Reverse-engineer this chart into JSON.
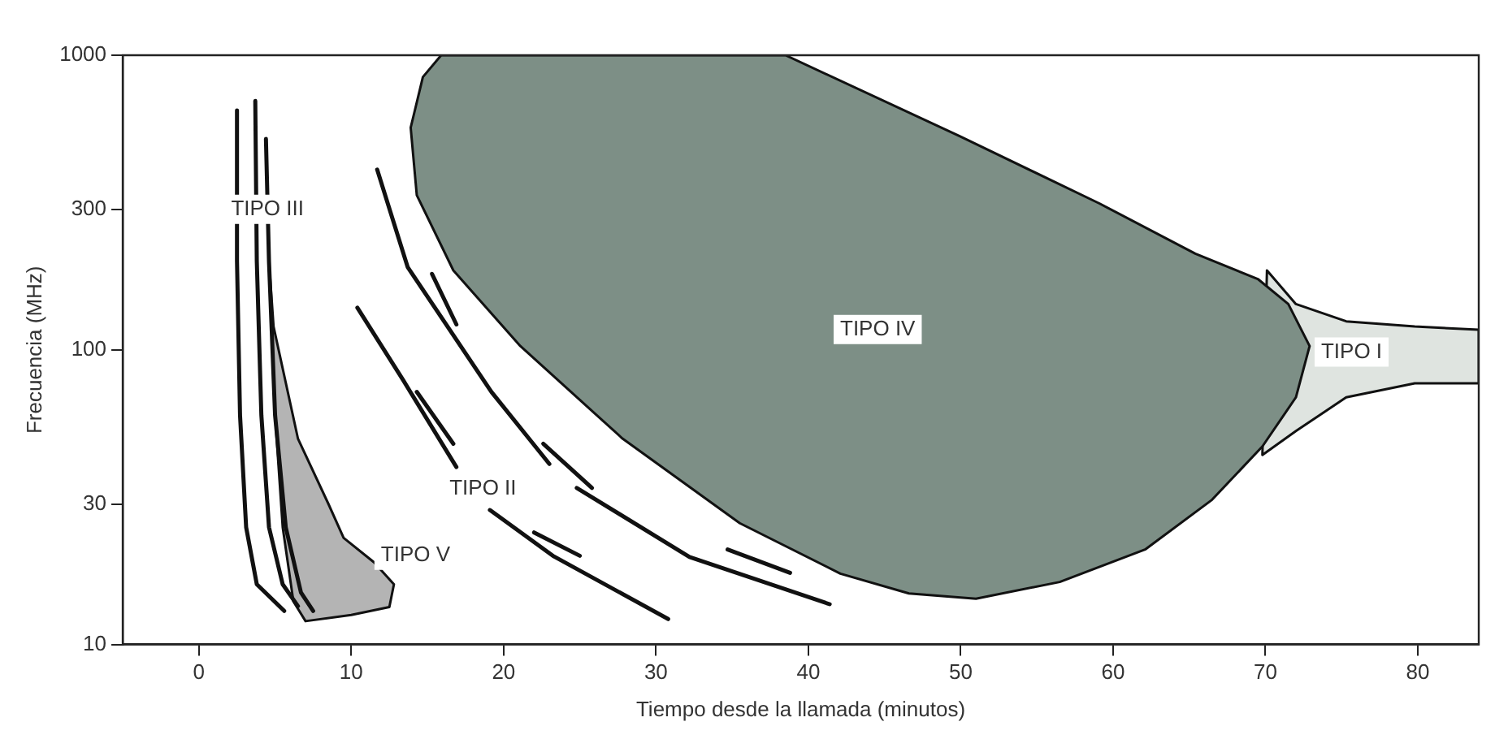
{
  "chart_data": {
    "type": "line",
    "xlabel": "Tiempo desde la llamada (minutos)",
    "ylabel": "Frecuencia (MHz)",
    "xlim": [
      -5,
      84
    ],
    "xticks": [
      0,
      10,
      20,
      30,
      40,
      50,
      60,
      70,
      80
    ],
    "ylim": [
      10,
      1000
    ],
    "yticks": [
      10,
      30,
      100,
      300,
      1000
    ],
    "log": "y",
    "grid": false,
    "legend": false,
    "marker": "none",
    "line_style": "solid",
    "series": [
      {
        "type": "area",
        "color": "#7d8f86",
        "x": [
          15.9,
          38.5,
          49.9,
          59.1,
          65.4,
          69.5,
          71.5,
          72.9,
          72.0,
          69.8,
          66.5,
          62.1,
          56.5,
          51.0,
          46.6,
          42.1,
          35.5,
          27.8,
          21.1,
          16.7,
          14.3,
          13.9,
          14.7,
          15.9
        ],
        "values": [
          1000,
          1000,
          532,
          314,
          212,
          174,
          143,
          103,
          69,
          47,
          31,
          21,
          16.3,
          14.3,
          14.9,
          17.4,
          25.8,
          50,
          103,
          186,
          335,
          568,
          843,
          1000
        ]
      },
      {
        "type": "area",
        "color": "#dfe4e0",
        "x": [
          70.1,
          72,
          75.3,
          79.8,
          84,
          84,
          79.8,
          75.3,
          72,
          69.8,
          70.1
        ],
        "values": [
          186,
          143,
          125,
          120,
          117,
          77,
          77,
          69,
          53,
          44,
          186
        ]
      },
      {
        "type": "area",
        "color": "#b4b4b4",
        "x": [
          4.6,
          4.9,
          6.5,
          8.5,
          9.5,
          11.5,
          12.8,
          12.5,
          10,
          7,
          6.2,
          5.5,
          5.0,
          4.6
        ],
        "values": [
          200,
          120,
          50,
          30,
          23,
          19,
          16,
          13.4,
          12.6,
          12,
          14,
          25,
          60,
          200
        ]
      },
      {
        "color": "#111111",
        "x": [
          2.5,
          2.5,
          2.7,
          3.1,
          3.8,
          5.6
        ],
        "values": [
          650,
          200,
          60,
          25,
          16,
          13
        ]
      },
      {
        "color": "#111111",
        "x": [
          3.7,
          3.8,
          4.1,
          4.6,
          5.5,
          6.5
        ],
        "values": [
          700,
          200,
          60,
          25,
          16,
          13.5
        ]
      },
      {
        "color": "#111111",
        "x": [
          4.4,
          4.6,
          5.0,
          5.7,
          6.7,
          7.5
        ],
        "values": [
          520,
          200,
          60,
          25,
          15,
          13
        ]
      },
      {
        "color": "#111111",
        "x": [
          10.4,
          13.4,
          16.9
        ],
        "values": [
          139,
          79,
          40
        ]
      },
      {
        "color": "#111111",
        "x": [
          19.1,
          23.3,
          30.8
        ],
        "values": [
          28.6,
          19.9,
          12.2
        ]
      },
      {
        "color": "#111111",
        "x": [
          11.7,
          13.7,
          19.2,
          23.0
        ],
        "values": [
          409,
          191,
          72,
          41
        ]
      },
      {
        "color": "#111111",
        "x": [
          24.8,
          32.2,
          41.4
        ],
        "values": [
          34,
          19.8,
          13.7
        ]
      },
      {
        "color": "#111111",
        "x": [
          15.3,
          16.9
        ],
        "values": [
          181,
          122
        ]
      },
      {
        "color": "#111111",
        "x": [
          14.3,
          16.7
        ],
        "values": [
          72,
          48
        ]
      },
      {
        "color": "#111111",
        "x": [
          22.6,
          25.8
        ],
        "values": [
          48,
          34
        ]
      },
      {
        "color": "#111111",
        "x": [
          22.0,
          25.0
        ],
        "values": [
          24,
          20
        ]
      },
      {
        "color": "#111111",
        "x": [
          34.7,
          38.8
        ],
        "values": [
          21,
          17.5
        ]
      }
    ],
    "annotations": [
      {
        "text": "TIPO III",
        "x": 4.5,
        "y": 300
      },
      "TIPO IV",
      "TIPO I",
      "TIPO V",
      "TIPO II"
    ]
  }
}
